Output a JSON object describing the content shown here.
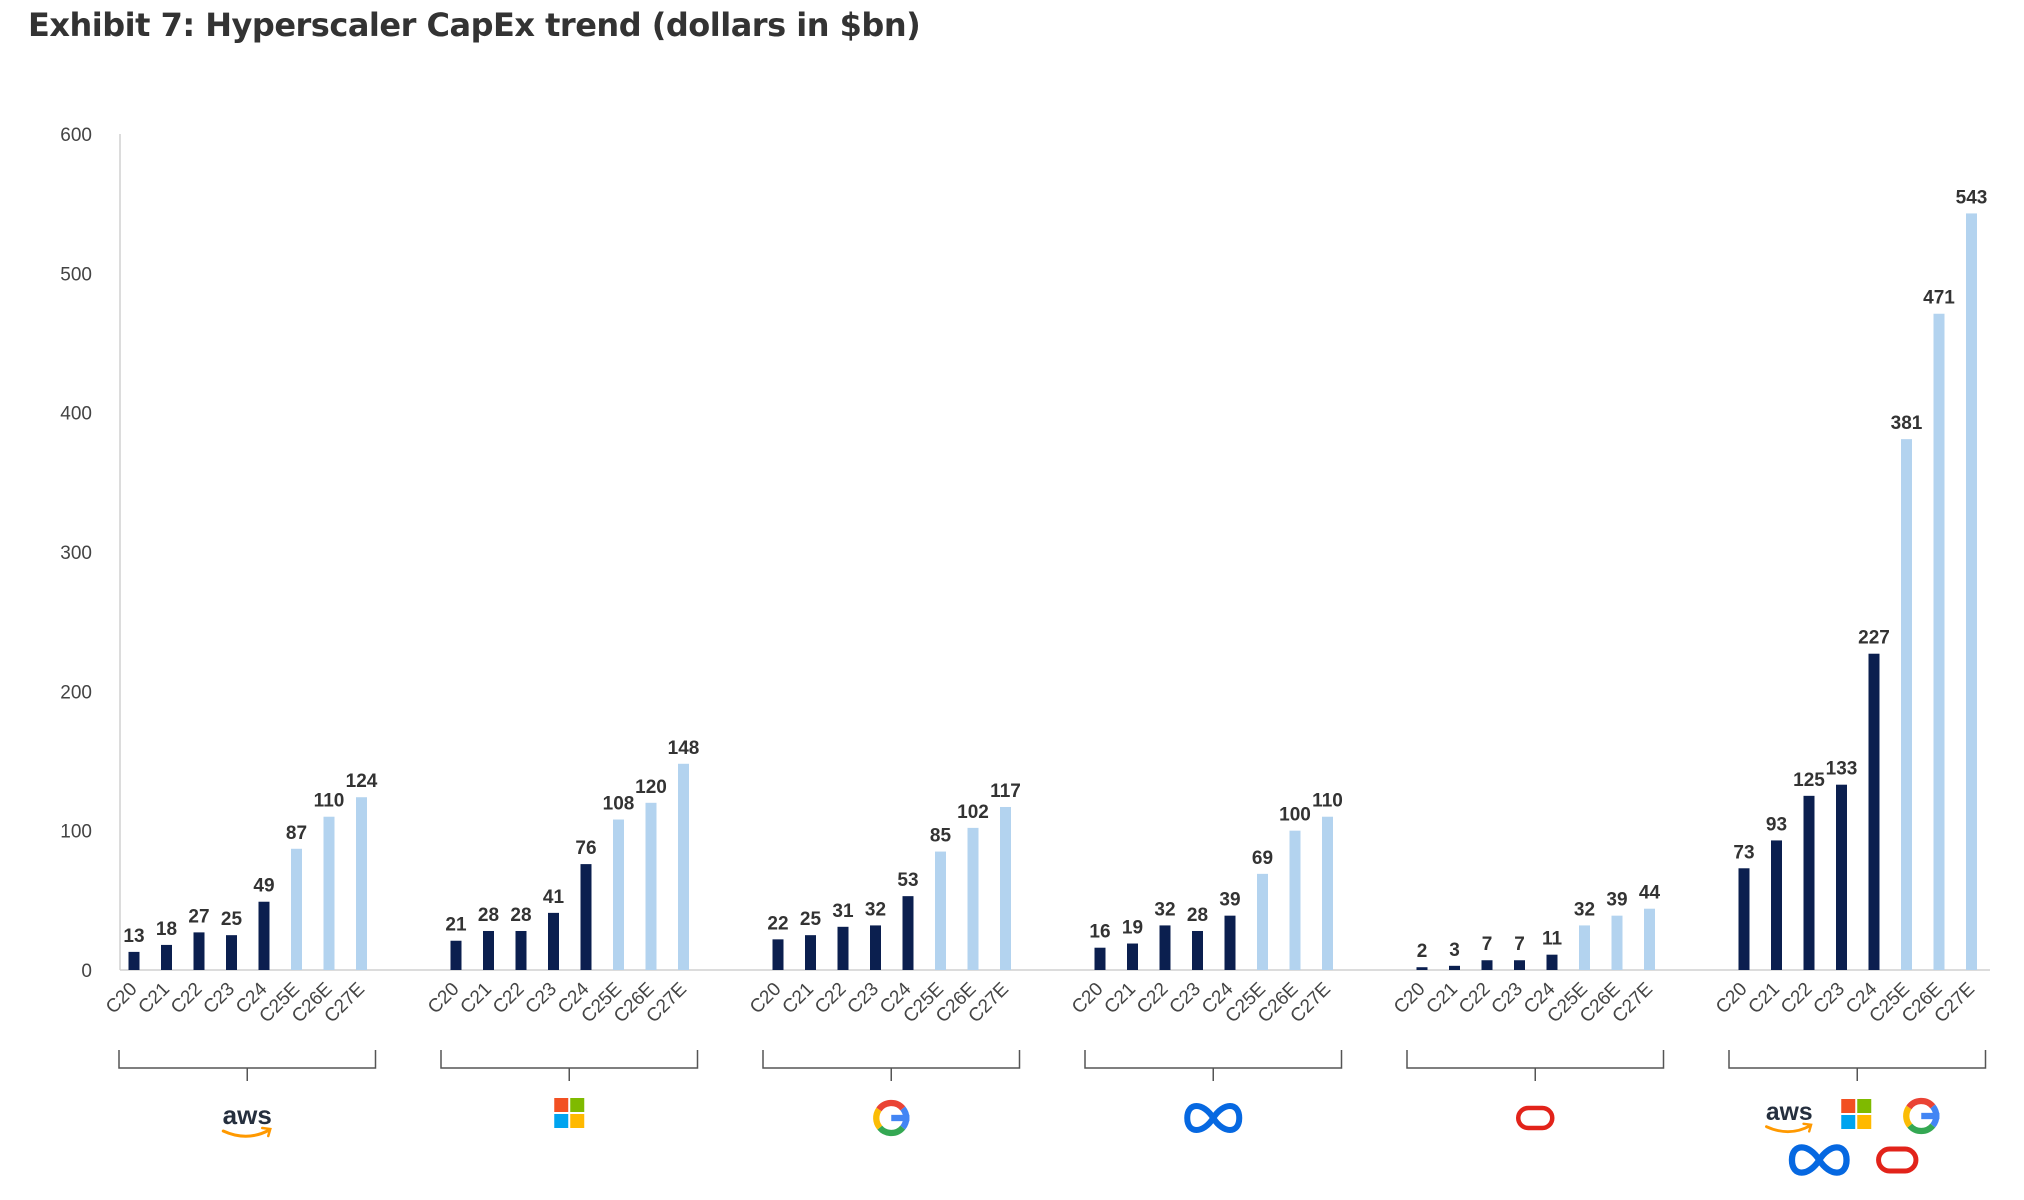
{
  "title": "Exhibit 7: Hyperscaler CapEx trend (dollars in $bn)",
  "chart_data": {
    "type": "bar",
    "ylim": [
      0,
      600
    ],
    "yticks": [
      0,
      100,
      200,
      300,
      400,
      500,
      600
    ],
    "grid": false,
    "colors": {
      "actual": "#0b1f4f",
      "estimate": "#b3d3ef"
    },
    "categories": [
      "C20",
      "C21",
      "C22",
      "C23",
      "C24",
      "C25E",
      "C26E",
      "C27E"
    ],
    "estimate_start_index": 5,
    "groups": [
      {
        "logo": "aws-logo",
        "logo_text": "aws",
        "values": [
          13,
          18,
          27,
          25,
          49,
          87,
          110,
          124
        ]
      },
      {
        "logo": "microsoft-logo",
        "values": [
          21,
          28,
          28,
          41,
          76,
          108,
          120,
          148
        ]
      },
      {
        "logo": "google-logo",
        "logo_text": "G",
        "values": [
          22,
          25,
          31,
          32,
          53,
          85,
          102,
          117
        ]
      },
      {
        "logo": "meta-logo",
        "values": [
          16,
          19,
          32,
          28,
          39,
          69,
          100,
          110
        ]
      },
      {
        "logo": "oracle-logo",
        "values": [
          2,
          3,
          7,
          7,
          11,
          32,
          39,
          44
        ]
      },
      {
        "logo": "all-hyperscalers-logos",
        "logo_text": "aws",
        "values": [
          73,
          93,
          125,
          133,
          227,
          381,
          471,
          543
        ]
      }
    ]
  }
}
